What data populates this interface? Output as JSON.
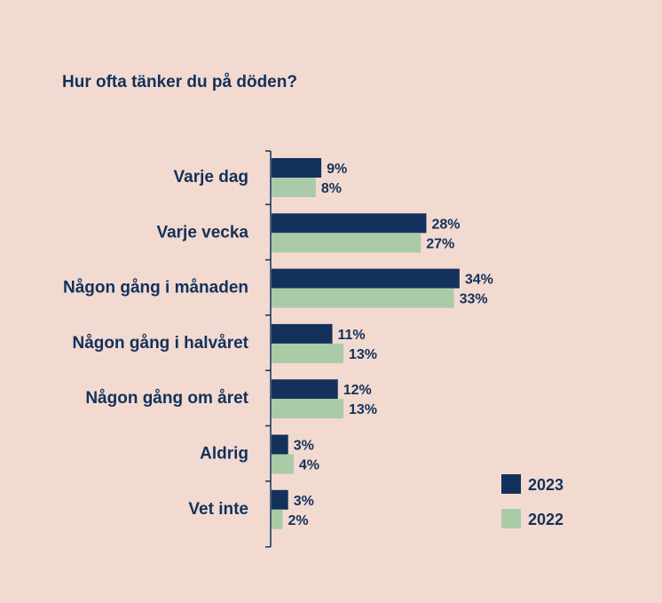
{
  "chart_data": {
    "type": "bar",
    "orientation": "horizontal",
    "title": "Hur ofta tänker du på döden?",
    "categories": [
      "Varje dag",
      "Varje vecka",
      "Någon gång i månaden",
      "Någon gång i halvåret",
      "Någon gång om året",
      "Aldrig",
      "Vet inte"
    ],
    "series": [
      {
        "name": "2023",
        "color": "#13315a",
        "values": [
          9,
          28,
          34,
          11,
          12,
          3,
          3
        ]
      },
      {
        "name": "2022",
        "color": "#a9cba8",
        "values": [
          8,
          27,
          33,
          13,
          13,
          4,
          2
        ]
      }
    ],
    "value_suffix": "%",
    "xlim": [
      0,
      40
    ],
    "grid": false,
    "legend": {
      "position": "bottom-right"
    }
  }
}
